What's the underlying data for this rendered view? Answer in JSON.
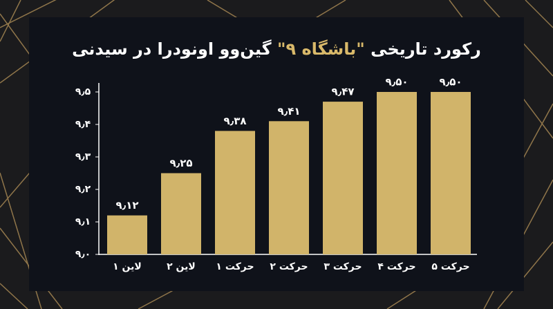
{
  "chart_data": {
    "type": "bar",
    "title": [
      "رکورد تاریخی ",
      "\"باشگاه ۹\"",
      " گین‌وو اونودرا در سیدنی"
    ],
    "title_highlight_color": "#d9b96a",
    "categories": [
      "لاین ۱",
      "لاین ۲",
      "حرکت ۱",
      "حرکت ۲",
      "حرکت ۳",
      "حرکت ۴",
      "حرکت ۵"
    ],
    "values": [
      9.12,
      9.25,
      9.38,
      9.41,
      9.47,
      9.5,
      9.5
    ],
    "value_labels": [
      "۹٫۱۲",
      "۹٫۲۵",
      "۹٫۳۸",
      "۹٫۴۱",
      "۹٫۴۷",
      "۹٫۵۰",
      "۹٫۵۰"
    ],
    "color": "#d1b46a",
    "ylim": [
      9.0,
      9.5
    ],
    "yticks": [
      {
        "value": 9.0,
        "label": "۹٫۰"
      },
      {
        "value": 9.1,
        "label": "۹٫۱"
      },
      {
        "value": 9.2,
        "label": "۹٫۲"
      },
      {
        "value": 9.3,
        "label": "۹٫۳"
      },
      {
        "value": 9.4,
        "label": "۹٫۴"
      },
      {
        "value": 9.5,
        "label": "۹٫۵"
      }
    ],
    "grid": false
  }
}
